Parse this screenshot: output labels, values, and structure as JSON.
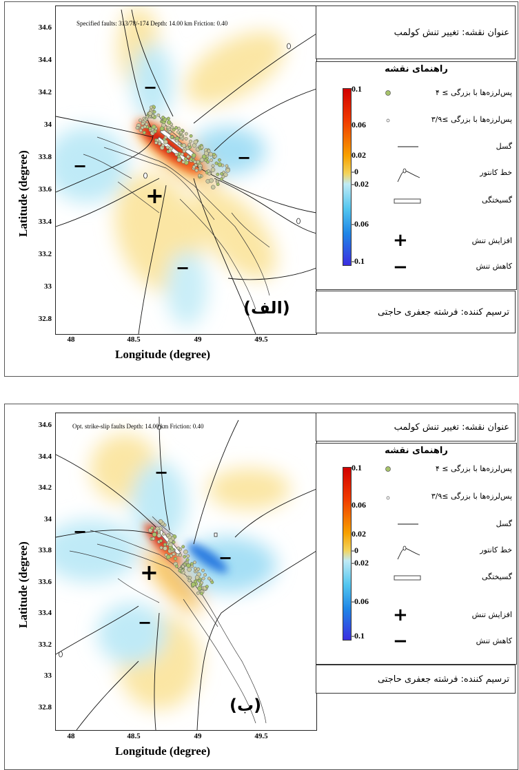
{
  "panels": [
    {
      "letter": "(الف)",
      "info": "Specified faults: 313/78/-174  Depth: 14.00 km  Friction: 0.40",
      "y_ticks": [
        "34.6",
        "34.4",
        "34.2",
        "34",
        "33.8",
        "33.6",
        "33.4",
        "33.2",
        "33",
        "32.8"
      ],
      "x_ticks": [
        "48",
        "48.5",
        "49",
        "49.5"
      ],
      "ylabel": "Latitude (degree)",
      "xlabel": "Longitude (degree)",
      "map_title": "عنوان نقشه: تغییر تنش کولمب",
      "legend_title": "راهنمای نقشه",
      "colorbar_ticks": [
        "0.1",
        "0.06",
        "0.02",
        "-0",
        "-0.02",
        "-0.06",
        "-0.1"
      ],
      "legend_items": [
        "پس‌لرزه‌ها با بزرگی ≥ ۴",
        "پس‌لرزه‌ها با بزرگی ≥۳/۹",
        "گسل",
        "خط کانتور",
        "گسیختگی",
        "افزایش تنش",
        "کاهش تنش"
      ],
      "credit": "ترسیم کننده: فرشته جعفری حاجتی",
      "symbols": {
        "increase": "+",
        "decrease": "−"
      }
    },
    {
      "letter": "(ب)",
      "info": "Opt. strike-slip faults  Depth: 14.00 km  Friction: 0.40",
      "y_ticks": [
        "34.6",
        "34.4",
        "34.2",
        "34",
        "33.8",
        "33.6",
        "33.4",
        "33.2",
        "33",
        "32.8"
      ],
      "x_ticks": [
        "48",
        "48.5",
        "49",
        "49.5"
      ],
      "ylabel": "Latitude (degree)",
      "xlabel": "Longitude (degree)",
      "map_title": "عنوان نقشه: تغییر تنش کولمب",
      "legend_title": "راهنمای نقشه",
      "colorbar_ticks": [
        "0.1",
        "0.06",
        "0.02",
        "-0",
        "-0.02",
        "-0.06",
        "-0.1"
      ],
      "legend_items": [
        "پس‌لرزه‌ها با بزرگی ≥ ۴",
        "پس‌لرزه‌ها با بزرگی ≥۳/۹",
        "گسل",
        "خط کانتور",
        "گسیختگی",
        "افزایش تنش",
        "کاهش تنش"
      ],
      "credit": "ترسیم کننده: فرشته جعفری حاجتی",
      "symbols": {
        "increase": "+",
        "decrease": "−"
      }
    }
  ],
  "colors": {
    "positive": "#e8291c",
    "negative": "#39b6ee",
    "aftershock": "#a7c36a"
  }
}
